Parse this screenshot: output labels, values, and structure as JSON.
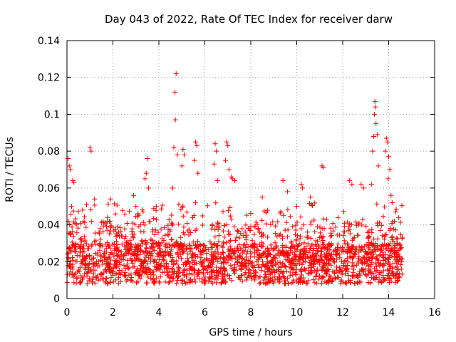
{
  "chart_data": {
    "type": "scatter",
    "title": "Day 043 of 2022, Rate Of TEC Index for receiver darw",
    "xlabel": "GPS time / hours",
    "ylabel": "ROTI / TECUs",
    "xlim": [
      0,
      16
    ],
    "ylim": [
      0,
      0.14
    ],
    "xticks": [
      0,
      2,
      4,
      6,
      8,
      10,
      12,
      14,
      16
    ],
    "xtick_labels": [
      "0",
      "2",
      "4",
      "6",
      "8",
      "10",
      "12",
      "14",
      "16"
    ],
    "yticks": [
      0,
      0.02,
      0.04,
      0.06,
      0.08,
      0.1,
      0.12,
      0.14
    ],
    "ytick_labels": [
      "0",
      "0.02",
      "0.04",
      "0.06",
      "0.08",
      "0.1",
      "0.12",
      "0.14"
    ],
    "grid": true,
    "marker": "+",
    "color": "#ff0000",
    "data_range_hours": [
      0,
      14.6
    ],
    "baseline_band": [
      0.008,
      0.03
    ],
    "notable_points": [
      {
        "x": 0.05,
        "y": 0.076
      },
      {
        "x": 0.1,
        "y": 0.072
      },
      {
        "x": 0.15,
        "y": 0.07
      },
      {
        "x": 0.25,
        "y": 0.064
      },
      {
        "x": 0.3,
        "y": 0.063
      },
      {
        "x": 0.2,
        "y": 0.05
      },
      {
        "x": 1.0,
        "y": 0.082
      },
      {
        "x": 1.05,
        "y": 0.08
      },
      {
        "x": 1.2,
        "y": 0.054
      },
      {
        "x": 1.9,
        "y": 0.054
      },
      {
        "x": 2.9,
        "y": 0.056
      },
      {
        "x": 3.0,
        "y": 0.05
      },
      {
        "x": 3.5,
        "y": 0.076
      },
      {
        "x": 3.45,
        "y": 0.068
      },
      {
        "x": 3.4,
        "y": 0.065
      },
      {
        "x": 3.55,
        "y": 0.06
      },
      {
        "x": 4.75,
        "y": 0.122
      },
      {
        "x": 4.7,
        "y": 0.112
      },
      {
        "x": 4.72,
        "y": 0.097
      },
      {
        "x": 4.65,
        "y": 0.082
      },
      {
        "x": 4.8,
        "y": 0.078
      },
      {
        "x": 4.6,
        "y": 0.06
      },
      {
        "x": 5.05,
        "y": 0.081
      },
      {
        "x": 5.1,
        "y": 0.078
      },
      {
        "x": 5.0,
        "y": 0.072
      },
      {
        "x": 5.6,
        "y": 0.085
      },
      {
        "x": 5.65,
        "y": 0.083
      },
      {
        "x": 5.55,
        "y": 0.075
      },
      {
        "x": 5.7,
        "y": 0.068
      },
      {
        "x": 6.45,
        "y": 0.084
      },
      {
        "x": 6.5,
        "y": 0.08
      },
      {
        "x": 6.4,
        "y": 0.073
      },
      {
        "x": 6.55,
        "y": 0.064
      },
      {
        "x": 6.95,
        "y": 0.085
      },
      {
        "x": 7.0,
        "y": 0.083
      },
      {
        "x": 6.9,
        "y": 0.075
      },
      {
        "x": 7.05,
        "y": 0.07
      },
      {
        "x": 7.15,
        "y": 0.066
      },
      {
        "x": 7.2,
        "y": 0.065
      },
      {
        "x": 7.3,
        "y": 0.064
      },
      {
        "x": 8.5,
        "y": 0.055
      },
      {
        "x": 9.4,
        "y": 0.064
      },
      {
        "x": 9.6,
        "y": 0.058
      },
      {
        "x": 10.2,
        "y": 0.062
      },
      {
        "x": 10.25,
        "y": 0.06
      },
      {
        "x": 10.6,
        "y": 0.055
      },
      {
        "x": 11.1,
        "y": 0.072
      },
      {
        "x": 11.15,
        "y": 0.071
      },
      {
        "x": 12.3,
        "y": 0.064
      },
      {
        "x": 12.4,
        "y": 0.062
      },
      {
        "x": 12.8,
        "y": 0.062
      },
      {
        "x": 12.9,
        "y": 0.06
      },
      {
        "x": 13.4,
        "y": 0.107
      },
      {
        "x": 13.42,
        "y": 0.104
      },
      {
        "x": 13.38,
        "y": 0.1
      },
      {
        "x": 13.45,
        "y": 0.095
      },
      {
        "x": 13.5,
        "y": 0.089
      },
      {
        "x": 13.35,
        "y": 0.088
      },
      {
        "x": 13.3,
        "y": 0.08
      },
      {
        "x": 13.55,
        "y": 0.072
      },
      {
        "x": 13.25,
        "y": 0.062
      },
      {
        "x": 13.9,
        "y": 0.087
      },
      {
        "x": 13.95,
        "y": 0.085
      },
      {
        "x": 13.85,
        "y": 0.08
      },
      {
        "x": 14.0,
        "y": 0.077
      },
      {
        "x": 14.05,
        "y": 0.07
      },
      {
        "x": 13.98,
        "y": 0.065
      },
      {
        "x": 14.1,
        "y": 0.056
      },
      {
        "x": 14.15,
        "y": 0.052
      },
      {
        "x": 14.3,
        "y": 0.047
      }
    ]
  }
}
